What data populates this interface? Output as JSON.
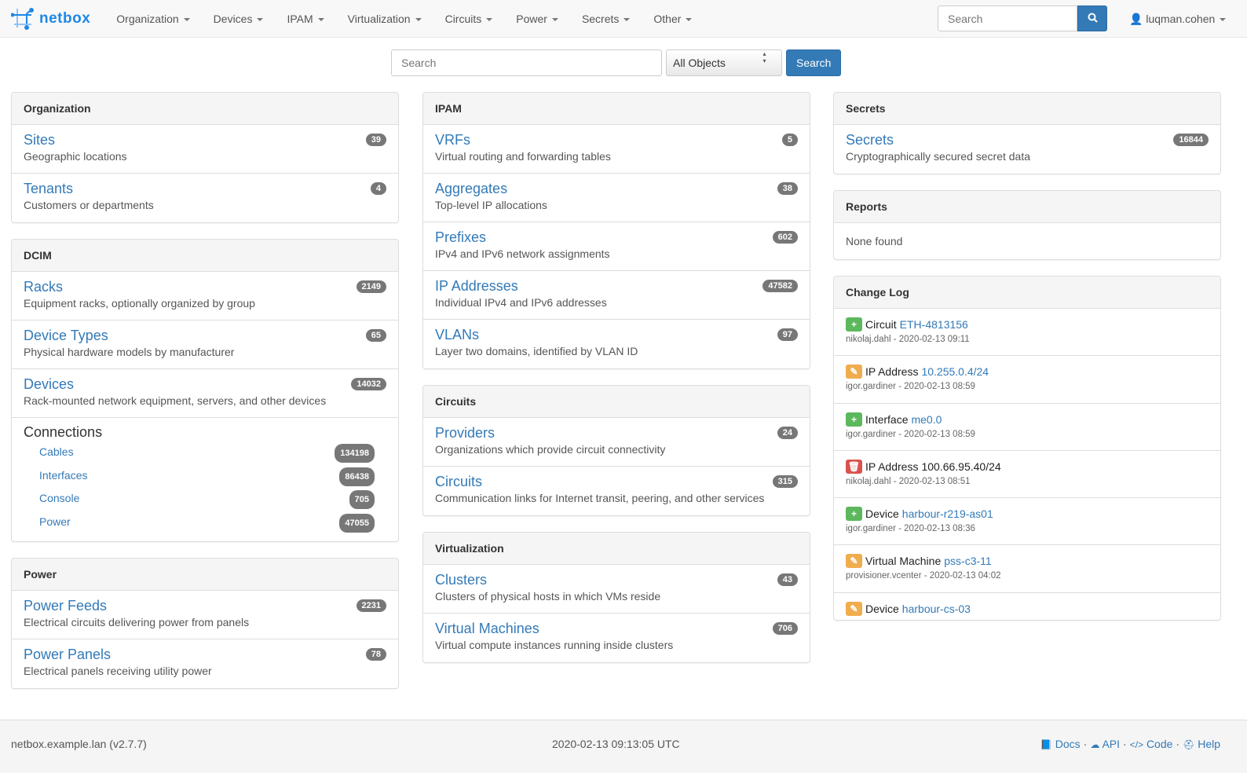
{
  "nav": {
    "brand": "netbox",
    "menu": [
      "Organization",
      "Devices",
      "IPAM",
      "Virtualization",
      "Circuits",
      "Power",
      "Secrets",
      "Other"
    ],
    "search_placeholder": "Search",
    "user": "luqman.cohen"
  },
  "search": {
    "placeholder": "Search",
    "select": "All Objects",
    "button": "Search"
  },
  "columns": [
    [
      {
        "title": "Organization",
        "items": [
          {
            "t": "Sites",
            "d": "Geographic locations",
            "c": "39"
          },
          {
            "t": "Tenants",
            "d": "Customers or departments",
            "c": "4"
          }
        ]
      },
      {
        "title": "DCIM",
        "items": [
          {
            "t": "Racks",
            "d": "Equipment racks, optionally organized by group",
            "c": "2149"
          },
          {
            "t": "Device Types",
            "d": "Physical hardware models by manufacturer",
            "c": "65"
          },
          {
            "t": "Devices",
            "d": "Rack-mounted network equipment, servers, and other devices",
            "c": "14032"
          }
        ],
        "connections": {
          "title": "Connections",
          "items": [
            {
              "t": "Cables",
              "c": "134198"
            },
            {
              "t": "Interfaces",
              "c": "86438"
            },
            {
              "t": "Console",
              "c": "705"
            },
            {
              "t": "Power",
              "c": "47055"
            }
          ]
        }
      },
      {
        "title": "Power",
        "items": [
          {
            "t": "Power Feeds",
            "d": "Electrical circuits delivering power from panels",
            "c": "2231"
          },
          {
            "t": "Power Panels",
            "d": "Electrical panels receiving utility power",
            "c": "78"
          }
        ]
      }
    ],
    [
      {
        "title": "IPAM",
        "items": [
          {
            "t": "VRFs",
            "d": "Virtual routing and forwarding tables",
            "c": "5"
          },
          {
            "t": "Aggregates",
            "d": "Top-level IP allocations",
            "c": "38"
          },
          {
            "t": "Prefixes",
            "d": "IPv4 and IPv6 network assignments",
            "c": "602"
          },
          {
            "t": "IP Addresses",
            "d": "Individual IPv4 and IPv6 addresses",
            "c": "47582"
          },
          {
            "t": "VLANs",
            "d": "Layer two domains, identified by VLAN ID",
            "c": "97"
          }
        ]
      },
      {
        "title": "Circuits",
        "items": [
          {
            "t": "Providers",
            "d": "Organizations which provide circuit connectivity",
            "c": "24"
          },
          {
            "t": "Circuits",
            "d": "Communication links for Internet transit, peering, and other services",
            "c": "315"
          }
        ]
      },
      {
        "title": "Virtualization",
        "items": [
          {
            "t": "Clusters",
            "d": "Clusters of physical hosts in which VMs reside",
            "c": "43"
          },
          {
            "t": "Virtual Machines",
            "d": "Virtual compute instances running inside clusters",
            "c": "706"
          }
        ]
      }
    ],
    [
      {
        "title": "Secrets",
        "items": [
          {
            "t": "Secrets",
            "d": "Cryptographically secured secret data",
            "c": "16844"
          }
        ]
      },
      {
        "title": "Reports",
        "none": "None found"
      }
    ]
  ],
  "changelog": {
    "title": "Change Log",
    "entries": [
      {
        "action": "create",
        "type": "Circuit",
        "obj": "ETH-4813156",
        "link": true,
        "meta": "nikolaj.dahl - 2020-02-13 09:11"
      },
      {
        "action": "update",
        "type": "IP Address",
        "obj": "10.255.0.4/24",
        "link": true,
        "meta": "igor.gardiner - 2020-02-13 08:59"
      },
      {
        "action": "create",
        "type": "Interface",
        "obj": "me0.0",
        "link": true,
        "meta": "igor.gardiner - 2020-02-13 08:59"
      },
      {
        "action": "delete",
        "type": "IP Address",
        "obj": "100.66.95.40/24",
        "link": false,
        "meta": "nikolaj.dahl - 2020-02-13 08:51"
      },
      {
        "action": "create",
        "type": "Device",
        "obj": "harbour-r219-as01",
        "link": true,
        "meta": "igor.gardiner - 2020-02-13 08:36"
      },
      {
        "action": "update",
        "type": "Virtual Machine",
        "obj": "pss-c3-11",
        "link": true,
        "meta": "provisioner.vcenter - 2020-02-13 04:02"
      },
      {
        "action": "update",
        "type": "Device",
        "obj": "harbour-cs-03",
        "link": true,
        "meta": ""
      }
    ]
  },
  "colors": {
    "create": "#5cb85c",
    "update": "#f0ad4e",
    "delete": "#d9534f",
    "link": "#337ab7"
  },
  "footer": {
    "left": "netbox.example.lan (v2.7.7)",
    "center": "2020-02-13 09:13:05 UTC",
    "links": [
      "Docs",
      "API",
      "Code",
      "Help"
    ]
  }
}
